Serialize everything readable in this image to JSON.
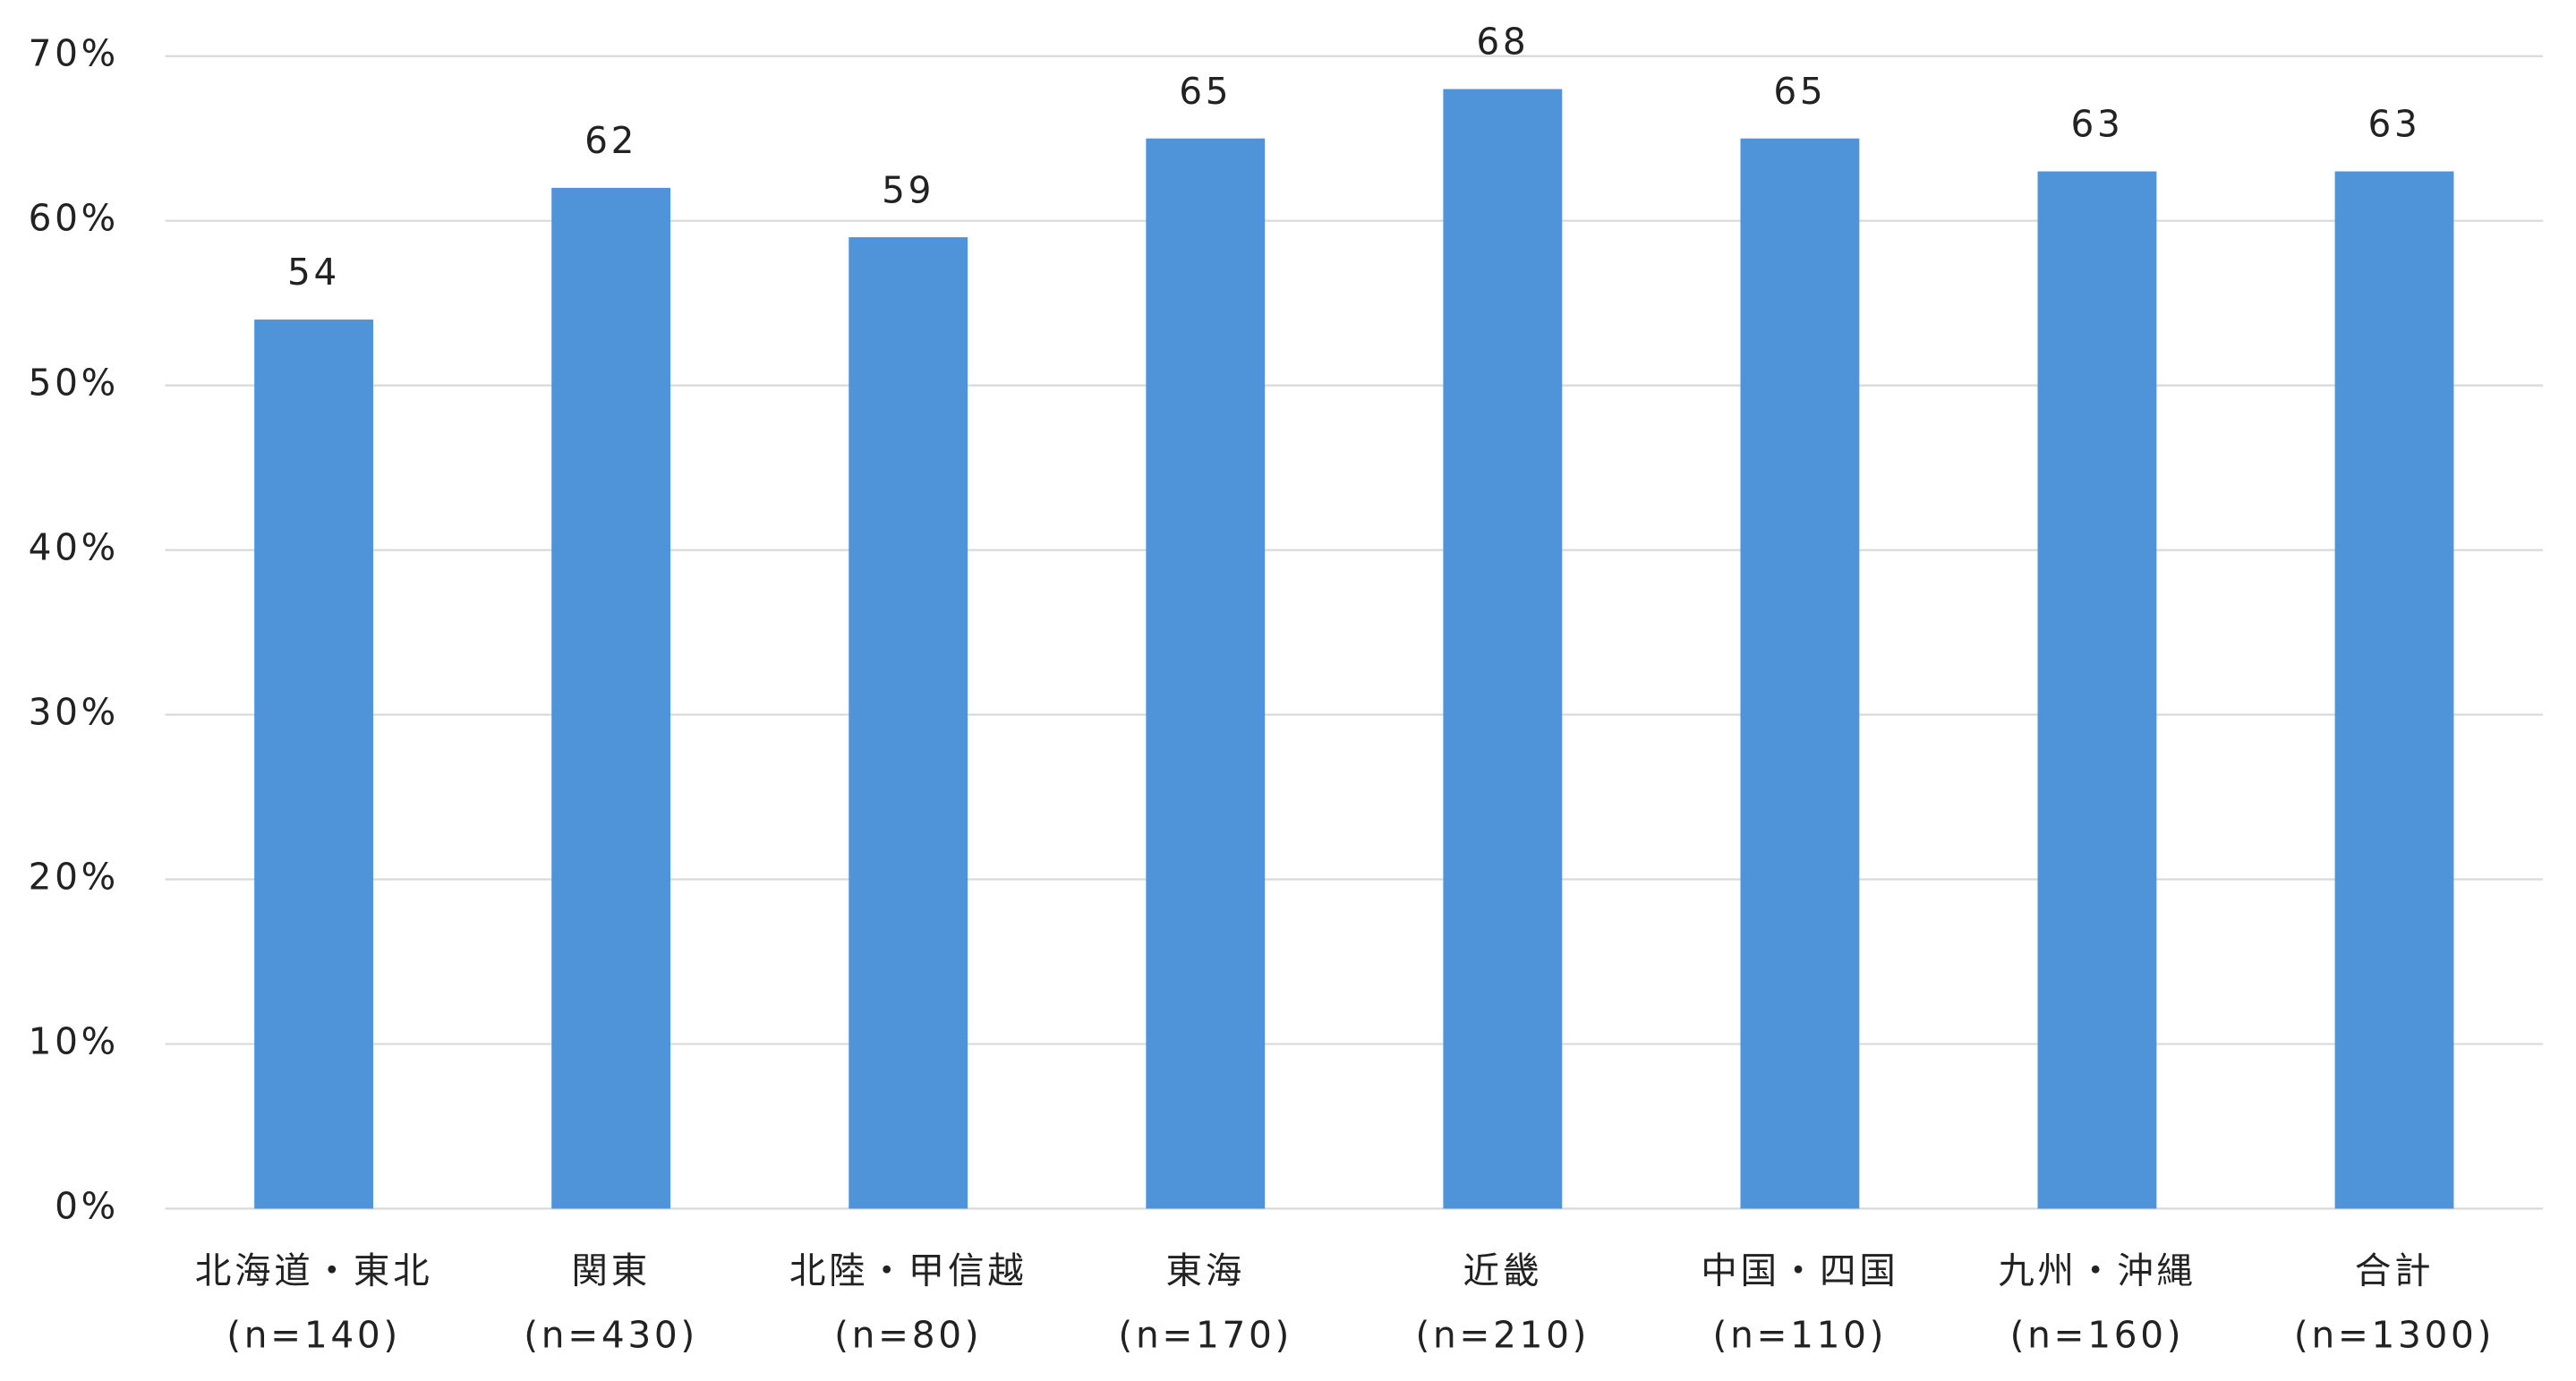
{
  "chart_data": {
    "type": "bar",
    "categories": [
      [
        "北海道・東北",
        "(n=140)"
      ],
      [
        "関東",
        "(n=430)"
      ],
      [
        "北陸・甲信越",
        "(n=80)"
      ],
      [
        "東海",
        "(n=170)"
      ],
      [
        "近畿",
        "(n=210)"
      ],
      [
        "中国・四国",
        "(n=110)"
      ],
      [
        "九州・沖縄",
        "(n=160)"
      ],
      [
        "合計",
        "(n=1300)"
      ]
    ],
    "values": [
      54,
      62,
      59,
      65,
      68,
      65,
      63,
      63
    ],
    "color": "#4f94d9",
    "ylim": [
      0,
      70
    ],
    "yticks": [
      {
        "value": 0,
        "label": "0%"
      },
      {
        "value": 10,
        "label": "10%"
      },
      {
        "value": 20,
        "label": "20%"
      },
      {
        "value": 30,
        "label": "30%"
      },
      {
        "value": 40,
        "label": "40%"
      },
      {
        "value": 50,
        "label": "50%"
      },
      {
        "value": 60,
        "label": "60%"
      },
      {
        "value": 70,
        "label": "70%"
      }
    ],
    "grid": true
  }
}
